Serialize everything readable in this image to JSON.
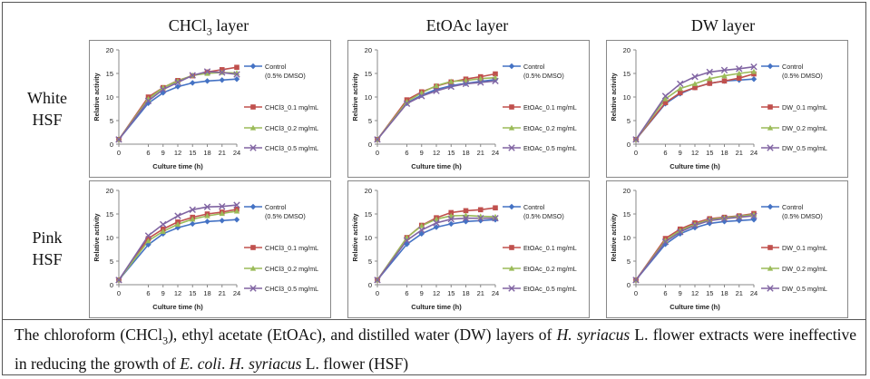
{
  "column_titles": {
    "chcl3": {
      "base": "CHCl",
      "sub": "3",
      "rest": " layer"
    },
    "etoac": "EtOAc  layer",
    "dw": "DW  layer"
  },
  "row_labels": {
    "white": [
      "White",
      "HSF"
    ],
    "pink": [
      "Pink",
      "HSF"
    ]
  },
  "caption": {
    "p1": "The chloroform (CHCl",
    "p1sub": "3",
    "p2": "), ethyl acetate (EtOAc), and distilled water (DW) layers of ",
    "p3": "H. syriacus",
    "p4": " L. flower extracts were ineffective in reducing the growth of ",
    "p5": "E. coli",
    "p6": ". ",
    "p7": "H. syriacus",
    "p8": " L. flower (HSF)"
  },
  "colors": {
    "control": "#4472C4",
    "s01": "#C0504D",
    "s02": "#9BBB59",
    "s05": "#8064A2"
  },
  "chart_data": [
    {
      "id": "white-chcl3",
      "type": "line",
      "xlabel": "Culture time (h)",
      "ylabel": "Relative activity",
      "x": [
        0,
        6,
        9,
        12,
        15,
        18,
        21,
        24
      ],
      "ylim": [
        0,
        20
      ],
      "yticks": [
        0,
        5,
        10,
        15,
        20
      ],
      "series": [
        {
          "name": "Control\n(0.5% DMSO)",
          "values": [
            1.0,
            8.7,
            10.9,
            12.2,
            13.0,
            13.4,
            13.6,
            13.8
          ]
        },
        {
          "name": "CHCl3_0.1 mg/mL",
          "values": [
            1.0,
            10.0,
            12.0,
            13.5,
            14.5,
            15.3,
            15.8,
            16.3
          ]
        },
        {
          "name": "CHCl3_0.2 mg/mL",
          "values": [
            1.0,
            9.6,
            12.0,
            13.4,
            14.6,
            15.0,
            15.2,
            15.1
          ]
        },
        {
          "name": "CHCl3_0.5 mg/mL",
          "values": [
            1.0,
            9.2,
            11.6,
            13.1,
            14.6,
            15.4,
            15.2,
            14.8
          ]
        }
      ]
    },
    {
      "id": "white-etoac",
      "type": "line",
      "xlabel": "Culture time (h)",
      "ylabel": "Relative activity",
      "x": [
        0,
        6,
        9,
        12,
        15,
        18,
        21,
        24
      ],
      "ylim": [
        0,
        20
      ],
      "yticks": [
        0,
        5,
        10,
        15,
        20
      ],
      "series": [
        {
          "name": "Control\n(0.5% DMSO)",
          "values": [
            1.0,
            8.7,
            10.4,
            11.6,
            12.4,
            12.9,
            13.3,
            13.7
          ]
        },
        {
          "name": "EtOAc_0.1 mg/mL",
          "values": [
            1.0,
            9.4,
            11.1,
            12.3,
            13.2,
            13.8,
            14.3,
            14.9
          ]
        },
        {
          "name": "EtOAc_0.2 mg/mL",
          "values": [
            1.0,
            9.0,
            10.9,
            12.4,
            13.3,
            13.5,
            13.9,
            14.1
          ]
        },
        {
          "name": "EtOAc_0.5 mg/mL",
          "values": [
            1.0,
            8.6,
            10.2,
            11.3,
            12.2,
            12.8,
            13.1,
            13.4
          ]
        }
      ]
    },
    {
      "id": "white-dw",
      "type": "line",
      "xlabel": "Culture time (h)",
      "ylabel": "Relative activity",
      "x": [
        0,
        6,
        9,
        12,
        15,
        18,
        21,
        24
      ],
      "ylim": [
        0,
        20
      ],
      "yticks": [
        0,
        5,
        10,
        15,
        20
      ],
      "series": [
        {
          "name": "Control\n(0.5% DMSO)",
          "values": [
            1.0,
            8.6,
            10.7,
            12.0,
            12.9,
            13.4,
            13.6,
            13.8
          ]
        },
        {
          "name": "DW_0.1 mg/mL",
          "values": [
            1.0,
            8.8,
            10.9,
            12.0,
            12.9,
            13.4,
            14.0,
            14.9
          ]
        },
        {
          "name": "DW_0.2 mg/mL",
          "values": [
            1.0,
            9.6,
            11.8,
            12.8,
            13.9,
            14.5,
            15.0,
            15.4
          ]
        },
        {
          "name": "DW_0.5 mg/mL",
          "values": [
            1.0,
            10.2,
            12.8,
            14.3,
            15.3,
            15.7,
            16.0,
            16.4
          ]
        }
      ]
    },
    {
      "id": "pink-chcl3",
      "type": "line",
      "xlabel": "Culture time (h)",
      "ylabel": "Relative activity",
      "x": [
        0,
        6,
        9,
        12,
        15,
        18,
        21,
        24
      ],
      "ylim": [
        0,
        20
      ],
      "yticks": [
        0,
        5,
        10,
        15,
        20
      ],
      "series": [
        {
          "name": "Control\n(0.5% DMSO)",
          "values": [
            1.0,
            8.5,
            10.8,
            12.1,
            12.9,
            13.4,
            13.6,
            13.8
          ]
        },
        {
          "name": "CHCl3_0.1 mg/mL",
          "values": [
            1.0,
            9.8,
            11.8,
            13.3,
            14.3,
            15.0,
            15.4,
            16.0
          ]
        },
        {
          "name": "CHCl3_0.2 mg/mL",
          "values": [
            1.0,
            9.3,
            11.3,
            12.8,
            13.9,
            14.6,
            15.1,
            15.6
          ]
        },
        {
          "name": "CHCl3_0.5 mg/mL",
          "values": [
            1.0,
            10.4,
            12.8,
            14.6,
            15.9,
            16.5,
            16.6,
            16.9
          ]
        }
      ]
    },
    {
      "id": "pink-etoac",
      "type": "line",
      "xlabel": "Culture time (h)",
      "ylabel": "Relative activity",
      "x": [
        0,
        6,
        9,
        12,
        15,
        18,
        21,
        24
      ],
      "ylim": [
        0,
        20
      ],
      "yticks": [
        0,
        5,
        10,
        15,
        20
      ],
      "series": [
        {
          "name": "Control\n(0.5% DMSO)",
          "values": [
            1.0,
            8.6,
            10.8,
            12.2,
            12.9,
            13.4,
            13.6,
            13.8
          ]
        },
        {
          "name": "EtOAc_0.1 mg/mL",
          "values": [
            1.0,
            10.0,
            12.6,
            14.2,
            15.3,
            15.7,
            15.9,
            16.3
          ]
        },
        {
          "name": "EtOAc_0.2 mg/mL",
          "values": [
            1.0,
            10.0,
            12.5,
            13.9,
            14.6,
            14.7,
            14.5,
            14.4
          ]
        },
        {
          "name": "EtOAc_0.5 mg/mL",
          "values": [
            1.0,
            9.4,
            11.6,
            13.1,
            13.9,
            14.1,
            14.1,
            14.1
          ]
        }
      ]
    },
    {
      "id": "pink-dw",
      "type": "line",
      "xlabel": "Culture time (h)",
      "ylabel": "Relative activity",
      "x": [
        0,
        6,
        9,
        12,
        15,
        18,
        21,
        24
      ],
      "ylim": [
        0,
        20
      ],
      "yticks": [
        0,
        5,
        10,
        15,
        20
      ],
      "series": [
        {
          "name": "Control\n(0.5% DMSO)",
          "values": [
            1.0,
            8.6,
            10.8,
            12.1,
            13.0,
            13.4,
            13.6,
            13.8
          ]
        },
        {
          "name": "DW_0.1 mg/mL",
          "values": [
            1.0,
            9.8,
            11.8,
            13.1,
            14.0,
            14.3,
            14.6,
            15.1
          ]
        },
        {
          "name": "DW_0.2 mg/mL",
          "values": [
            1.0,
            9.4,
            11.5,
            12.8,
            13.8,
            14.2,
            14.5,
            14.9
          ]
        },
        {
          "name": "DW_0.5 mg/mL",
          "values": [
            1.0,
            9.1,
            11.2,
            12.6,
            13.6,
            14.0,
            14.3,
            14.6
          ]
        }
      ]
    }
  ]
}
